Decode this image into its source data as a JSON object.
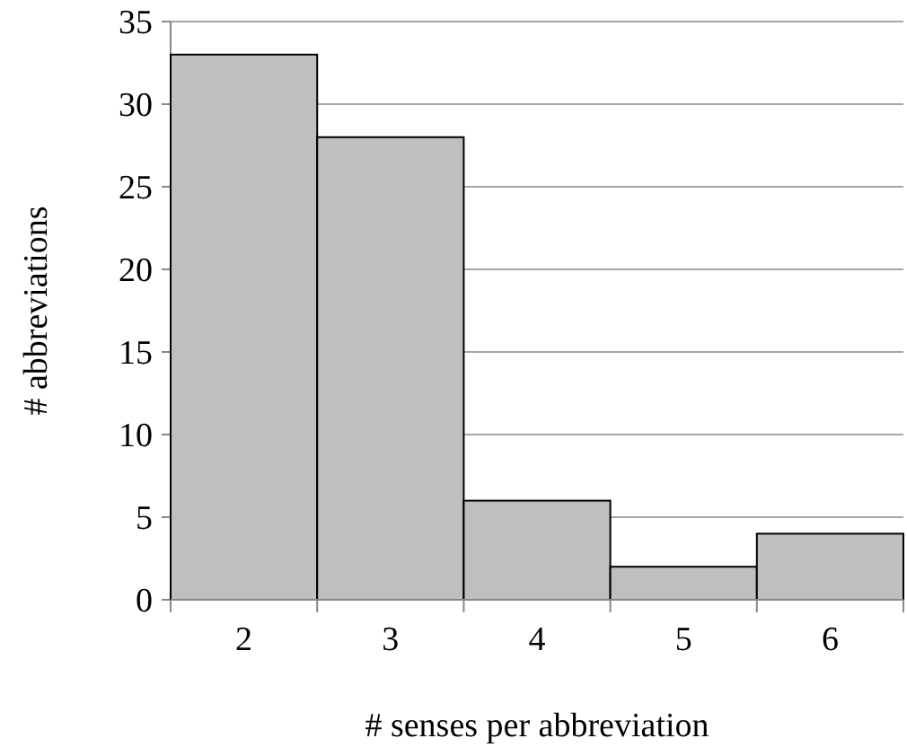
{
  "chart_data": {
    "type": "bar",
    "xlabel": "# senses per abbreviation",
    "ylabel": "# abbreviations",
    "categories": [
      "2",
      "3",
      "4",
      "5",
      "6"
    ],
    "values": [
      33,
      28,
      6,
      2,
      4
    ],
    "color": "#bfbfbf",
    "ylim": [
      0,
      35
    ],
    "yticks": [
      0,
      5,
      10,
      15,
      20,
      25,
      30,
      35
    ],
    "grid": "y"
  }
}
